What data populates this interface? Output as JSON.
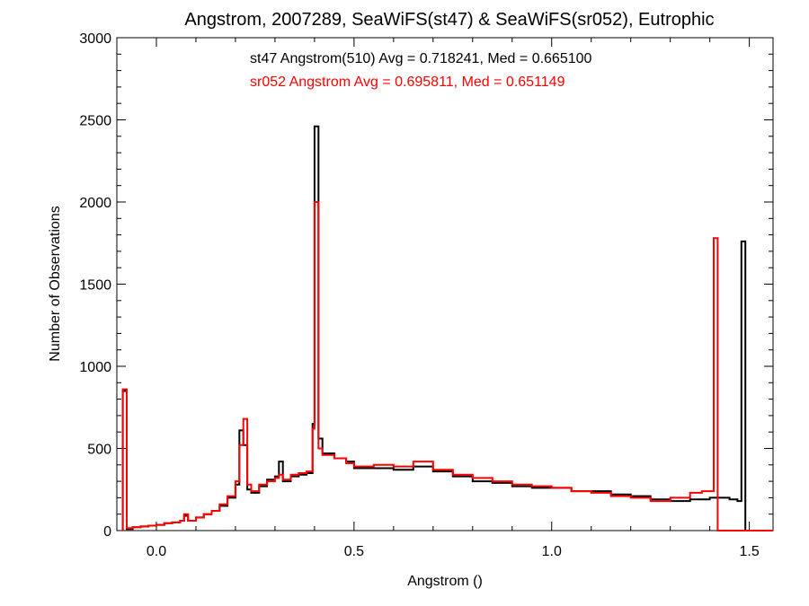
{
  "chart_data": {
    "type": "line",
    "title": "Angstrom, 2007289, SeaWiFS(st47) & SeaWiFS(sr052), Eutrophic",
    "xlabel": "Angstrom ()",
    "ylabel": "Number of Observations",
    "xlim": [
      -0.1,
      1.56
    ],
    "ylim": [
      0,
      3000
    ],
    "x_ticks": [
      0.0,
      0.5,
      1.0,
      1.5
    ],
    "x_tick_labels": [
      "0.0",
      "0.5",
      "1.0",
      "1.5"
    ],
    "y_ticks": [
      0,
      500,
      1000,
      1500,
      2000,
      2500,
      3000
    ],
    "y_tick_labels": [
      "0",
      "500",
      "1000",
      "1500",
      "2000",
      "2500",
      "3000"
    ],
    "grid": false,
    "annotations": [
      {
        "text": "st47 Angstrom(510) Avg = 0.718241, Med = 0.665100",
        "color": "#000000"
      },
      {
        "text": "sr052 Angstrom Avg = 0.695811, Med = 0.651149",
        "color": "#ff0000"
      }
    ],
    "series": [
      {
        "color": "#000000",
        "x": [
          -0.085,
          -0.075,
          -0.06,
          -0.04,
          -0.02,
          0.0,
          0.02,
          0.04,
          0.06,
          0.07,
          0.08,
          0.1,
          0.12,
          0.14,
          0.16,
          0.18,
          0.2,
          0.21,
          0.22,
          0.23,
          0.24,
          0.26,
          0.28,
          0.3,
          0.31,
          0.32,
          0.34,
          0.36,
          0.38,
          0.395,
          0.4,
          0.41,
          0.42,
          0.45,
          0.48,
          0.5,
          0.55,
          0.6,
          0.65,
          0.7,
          0.75,
          0.8,
          0.85,
          0.9,
          0.95,
          1.0,
          1.05,
          1.1,
          1.15,
          1.2,
          1.25,
          1.3,
          1.35,
          1.4,
          1.45,
          1.47,
          1.48,
          1.49,
          1.56
        ],
        "y": [
          850,
          10,
          20,
          25,
          30,
          35,
          45,
          50,
          60,
          90,
          60,
          80,
          100,
          120,
          150,
          200,
          280,
          610,
          520,
          250,
          230,
          270,
          310,
          330,
          420,
          300,
          330,
          340,
          350,
          650,
          2460,
          560,
          470,
          440,
          420,
          380,
          380,
          370,
          390,
          360,
          330,
          300,
          290,
          270,
          260,
          260,
          240,
          240,
          220,
          210,
          190,
          180,
          190,
          200,
          190,
          180,
          1760,
          0,
          0
        ]
      },
      {
        "color": "#ff0000",
        "x": [
          -0.085,
          -0.075,
          -0.06,
          -0.04,
          -0.02,
          0.0,
          0.02,
          0.04,
          0.06,
          0.07,
          0.08,
          0.1,
          0.12,
          0.14,
          0.16,
          0.18,
          0.2,
          0.21,
          0.22,
          0.23,
          0.24,
          0.26,
          0.28,
          0.3,
          0.31,
          0.32,
          0.34,
          0.36,
          0.38,
          0.395,
          0.4,
          0.41,
          0.42,
          0.45,
          0.48,
          0.5,
          0.55,
          0.6,
          0.65,
          0.7,
          0.75,
          0.8,
          0.85,
          0.9,
          0.95,
          1.0,
          1.05,
          1.1,
          1.15,
          1.2,
          1.25,
          1.3,
          1.35,
          1.38,
          1.41,
          1.42,
          1.56
        ],
        "y": [
          860,
          15,
          20,
          25,
          30,
          35,
          45,
          50,
          60,
          100,
          60,
          80,
          100,
          120,
          160,
          210,
          300,
          520,
          680,
          280,
          240,
          280,
          300,
          320,
          340,
          310,
          340,
          350,
          360,
          620,
          2000,
          500,
          460,
          440,
          410,
          390,
          400,
          390,
          420,
          370,
          340,
          320,
          300,
          280,
          270,
          260,
          240,
          230,
          210,
          200,
          180,
          200,
          230,
          240,
          1780,
          0,
          0
        ]
      }
    ]
  }
}
